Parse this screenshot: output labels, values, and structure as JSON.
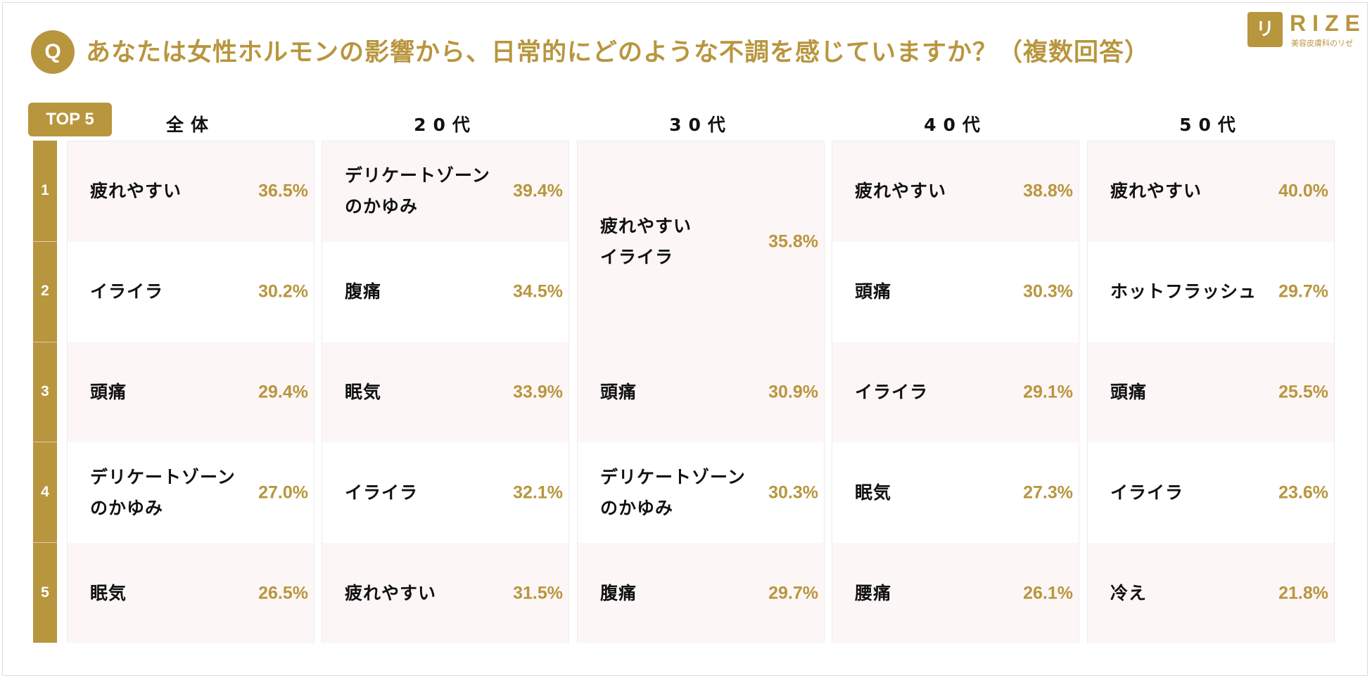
{
  "question_badge": "Q",
  "title": "あなたは女性ホルモンの影響から、日常的にどのような不調を感じていますか？（複数回答）",
  "logo": {
    "mark": "リゼ",
    "name": "RIZE",
    "sub": "美容皮膚科のリゼ"
  },
  "top_label": "TOP 5",
  "ranks": [
    "1",
    "2",
    "3",
    "4",
    "5"
  ],
  "colors": {
    "accent": "#b8963e",
    "pink_cell": "#fdf6f6"
  },
  "chart_data": {
    "type": "table",
    "columns": [
      {
        "header": "全体",
        "rows": [
          {
            "ranks": [
              1
            ],
            "label": "疲れやすい",
            "value": "36.5%"
          },
          {
            "ranks": [
              2
            ],
            "label": "イライラ",
            "value": "30.2%"
          },
          {
            "ranks": [
              3
            ],
            "label": "頭痛",
            "value": "29.4%"
          },
          {
            "ranks": [
              4
            ],
            "label": "デリケートゾーン\nのかゆみ",
            "value": "27.0%"
          },
          {
            "ranks": [
              5
            ],
            "label": "眠気",
            "value": "26.5%"
          }
        ]
      },
      {
        "header": "20代",
        "rows": [
          {
            "ranks": [
              1
            ],
            "label": "デリケートゾーン\nのかゆみ",
            "value": "39.4%"
          },
          {
            "ranks": [
              2
            ],
            "label": "腹痛",
            "value": "34.5%"
          },
          {
            "ranks": [
              3
            ],
            "label": "眠気",
            "value": "33.9%"
          },
          {
            "ranks": [
              4
            ],
            "label": "イライラ",
            "value": "32.1%"
          },
          {
            "ranks": [
              5
            ],
            "label": "疲れやすい",
            "value": "31.5%"
          }
        ]
      },
      {
        "header": "30代",
        "rows": [
          {
            "ranks": [
              1,
              2
            ],
            "label": "疲れやすい\nイライラ",
            "value": "35.8%"
          },
          {
            "ranks": [
              3
            ],
            "label": "頭痛",
            "value": "30.9%"
          },
          {
            "ranks": [
              4
            ],
            "label": "デリケートゾーン\nのかゆみ",
            "value": "30.3%"
          },
          {
            "ranks": [
              5
            ],
            "label": "腹痛",
            "value": "29.7%"
          }
        ]
      },
      {
        "header": "40代",
        "rows": [
          {
            "ranks": [
              1
            ],
            "label": "疲れやすい",
            "value": "38.8%"
          },
          {
            "ranks": [
              2
            ],
            "label": "頭痛",
            "value": "30.3%"
          },
          {
            "ranks": [
              3
            ],
            "label": "イライラ",
            "value": "29.1%"
          },
          {
            "ranks": [
              4
            ],
            "label": "眠気",
            "value": "27.3%"
          },
          {
            "ranks": [
              5
            ],
            "label": "腰痛",
            "value": "26.1%"
          }
        ]
      },
      {
        "header": "50代",
        "rows": [
          {
            "ranks": [
              1
            ],
            "label": "疲れやすい",
            "value": "40.0%"
          },
          {
            "ranks": [
              2
            ],
            "label": "ホットフラッシュ",
            "value": "29.7%"
          },
          {
            "ranks": [
              3
            ],
            "label": "頭痛",
            "value": "25.5%"
          },
          {
            "ranks": [
              4
            ],
            "label": "イライラ",
            "value": "23.6%"
          },
          {
            "ranks": [
              5
            ],
            "label": "冷え",
            "value": "21.8%"
          }
        ]
      }
    ]
  }
}
